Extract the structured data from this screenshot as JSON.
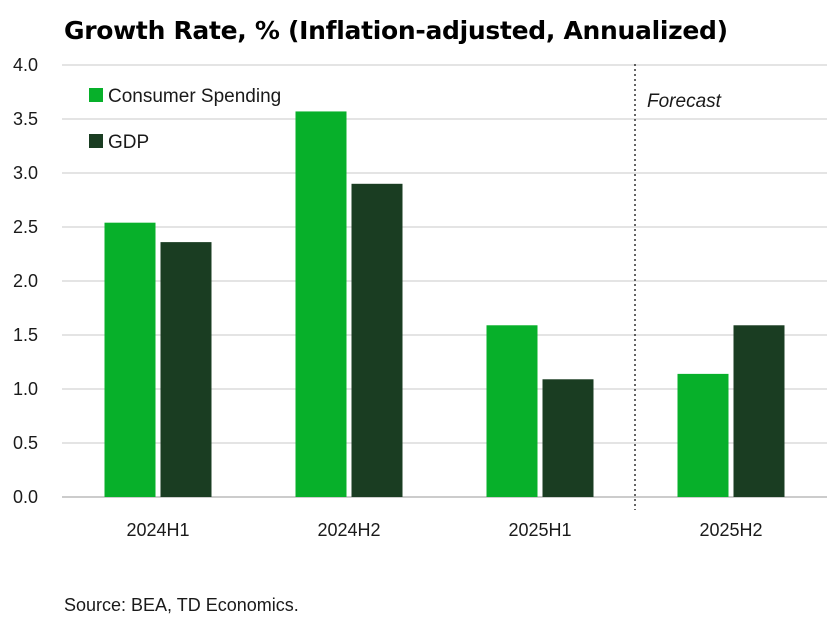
{
  "chart_data": {
    "type": "bar",
    "title": "Growth Rate, % (Inflation-adjusted, Annualized)",
    "categories": [
      "2024H1",
      "2024H2",
      "2025H1",
      "2025H2"
    ],
    "series": [
      {
        "name": "Consumer Spending",
        "color": "#07b02a",
        "values": [
          2.54,
          3.57,
          1.59,
          1.14
        ]
      },
      {
        "name": "GDP",
        "color": "#1a3d22",
        "values": [
          2.36,
          2.9,
          1.09,
          1.59
        ]
      }
    ],
    "ylim": [
      0,
      4.0
    ],
    "yticks": [
      "0.0",
      "0.5",
      "1.0",
      "1.5",
      "2.0",
      "2.5",
      "3.0",
      "3.5",
      "4.0"
    ],
    "grid": true,
    "legend_position": "top-left",
    "annotation": "Forecast",
    "forecast_divider_after": "2025H1",
    "source": "Source: BEA, TD Economics."
  }
}
